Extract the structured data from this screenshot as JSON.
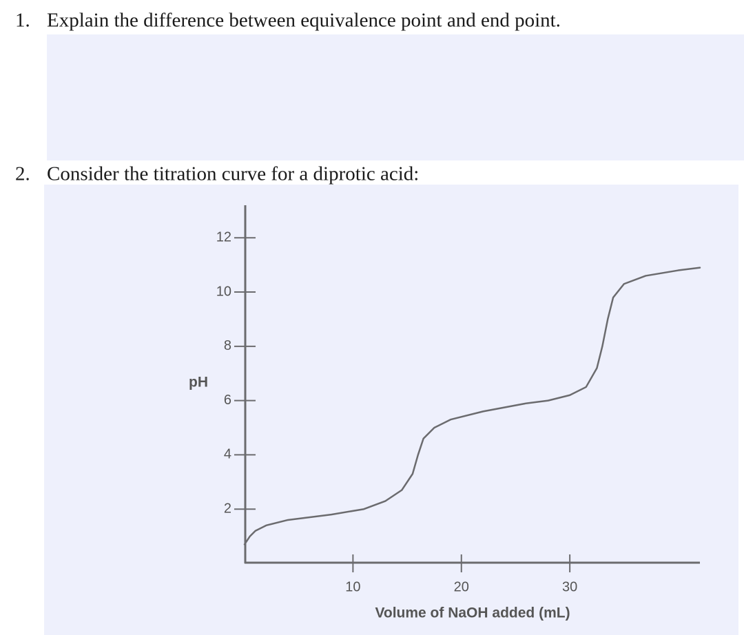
{
  "questions": [
    {
      "number": "1.",
      "text": "Explain the difference between equivalence point and end point."
    },
    {
      "number": "2.",
      "text": "Consider the titration curve for a diprotic acid:"
    }
  ],
  "chart_data": {
    "type": "line",
    "x_label": "Volume of NaOH added (mL)",
    "y_label": "pH",
    "x": [
      0,
      0.5,
      1,
      2,
      4,
      8,
      11,
      13,
      14.5,
      15.5,
      16,
      16.5,
      17.5,
      19,
      22,
      26,
      28,
      30,
      31.5,
      32.5,
      33,
      33.5,
      34,
      35,
      37,
      40,
      42
    ],
    "series": [
      {
        "color": "#6b6b6e",
        "values": [
          0.7,
          1.0,
          1.2,
          1.4,
          1.6,
          1.8,
          2.0,
          2.3,
          2.7,
          3.3,
          4.0,
          4.6,
          5.0,
          5.3,
          5.6,
          5.9,
          6.0,
          6.2,
          6.5,
          7.2,
          8.0,
          9.0,
          9.8,
          10.3,
          10.6,
          10.8,
          10.9
        ]
      }
    ],
    "xlim": [
      0,
      42
    ],
    "ylim": [
      0,
      13.2
    ],
    "xticks": [
      10,
      20,
      30
    ],
    "yticks": [
      2,
      4,
      6,
      8,
      10,
      12
    ]
  }
}
